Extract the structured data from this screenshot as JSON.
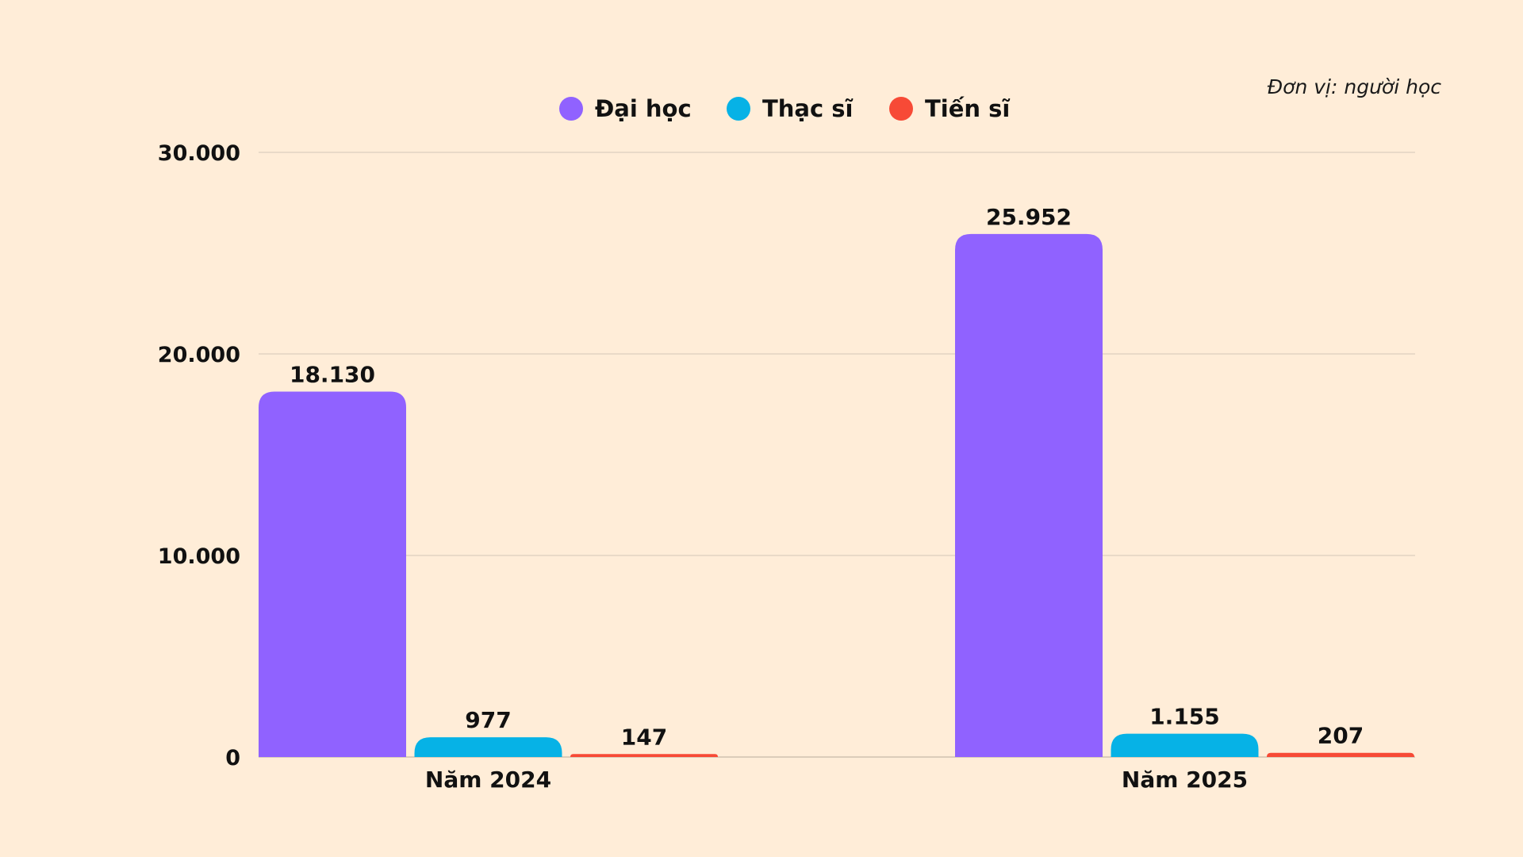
{
  "unit_label": "Đơn vị: người học",
  "colors": {
    "background": "#FFEDD8",
    "dai_hoc": "#9062FF",
    "thac_si": "#06B2E6",
    "tien_si": "#F74A36"
  },
  "chart_data": {
    "type": "bar",
    "categories": [
      "Năm 2024",
      "Năm 2025"
    ],
    "series": [
      {
        "name": "Đại học",
        "values": [
          18130,
          25952
        ],
        "labels": [
          "18.130",
          "25.952"
        ],
        "color": "#9062FF"
      },
      {
        "name": "Thạc sĩ",
        "values": [
          977,
          1155
        ],
        "labels": [
          "977",
          "1.155"
        ],
        "color": "#06B2E6"
      },
      {
        "name": "Tiến sĩ",
        "values": [
          147,
          207
        ],
        "labels": [
          "147",
          "207"
        ],
        "color": "#F74A36"
      }
    ],
    "ylim": [
      0,
      30000
    ],
    "yticks": [
      0,
      10000,
      20000,
      30000
    ],
    "ytick_labels": [
      "0",
      "10.000",
      "20.000",
      "30.000"
    ],
    "grid": true,
    "legend_position": "top-center"
  }
}
